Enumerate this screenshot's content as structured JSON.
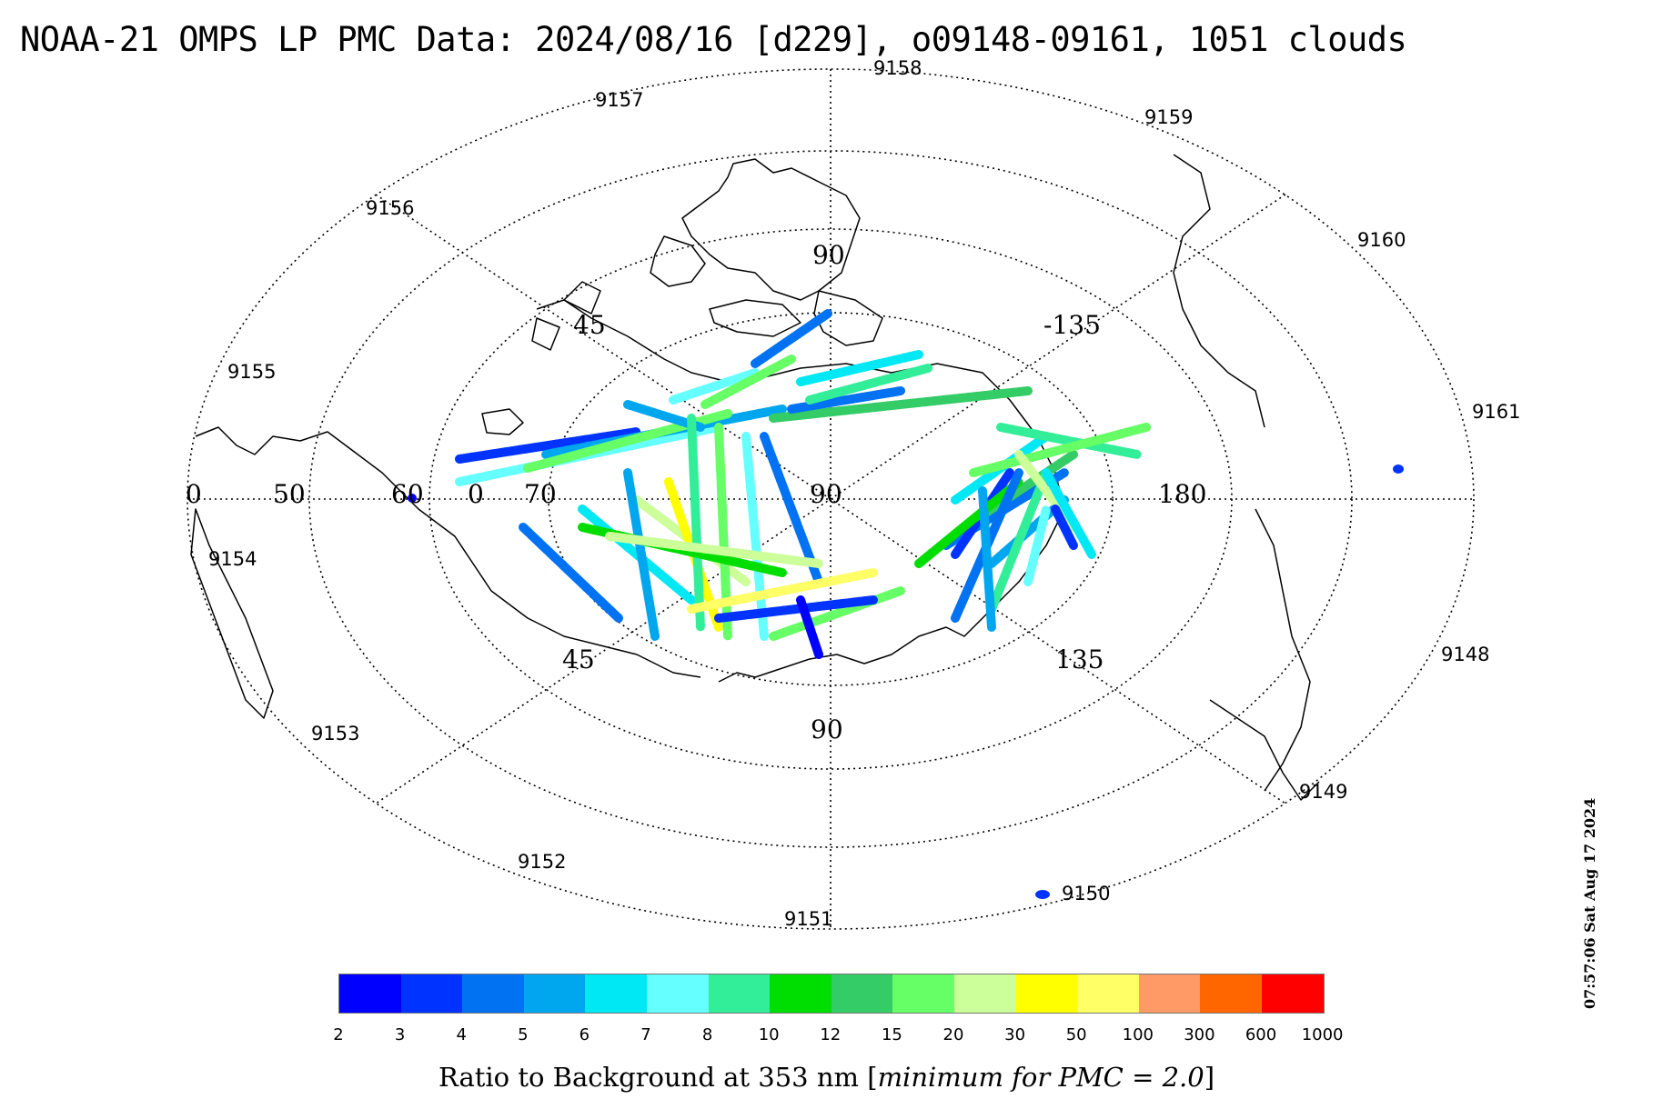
{
  "title": "NOAA-21 OMPS LP PMC Data: 2024/08/16 [d229], o09148-09161, 1051 clouds",
  "timestamp": "07:57:06 Sat Aug 17 2024",
  "grid_labels": [
    {
      "text": "90"
    },
    {
      "text": "45"
    },
    {
      "text": "-135"
    },
    {
      "text": "0"
    },
    {
      "text": "50"
    },
    {
      "text": "60"
    },
    {
      "text": "0"
    },
    {
      "text": "70"
    },
    {
      "text": "90"
    },
    {
      "text": "180"
    },
    {
      "text": "45"
    },
    {
      "text": "135"
    },
    {
      "text": "90"
    }
  ],
  "orbit_labels": [
    "9158",
    "9157",
    "9159",
    "9156",
    "9160",
    "9155",
    "9161",
    "9154",
    "9148",
    "9153",
    "9149",
    "9152",
    "9150",
    "9151"
  ],
  "colorbar": {
    "colors": [
      "#0000ff",
      "#0033ff",
      "#0072f2",
      "#00a6ee",
      "#00e8f3",
      "#66ffff",
      "#33ee99",
      "#00dd00",
      "#33cc66",
      "#66ff66",
      "#ccff99",
      "#ffff00",
      "#ffff66",
      "#ff9966",
      "#ff6600",
      "#ff0000"
    ],
    "ticks": [
      "2",
      "3",
      "4",
      "5",
      "6",
      "7",
      "8",
      "10",
      "12",
      "15",
      "20",
      "30",
      "50",
      "100",
      "300",
      "600",
      "1000"
    ],
    "label_prefix": "Ratio to Background at 353 nm [",
    "label_italic": "minimum for PMC = 2.0",
    "label_suffix": "]"
  }
}
